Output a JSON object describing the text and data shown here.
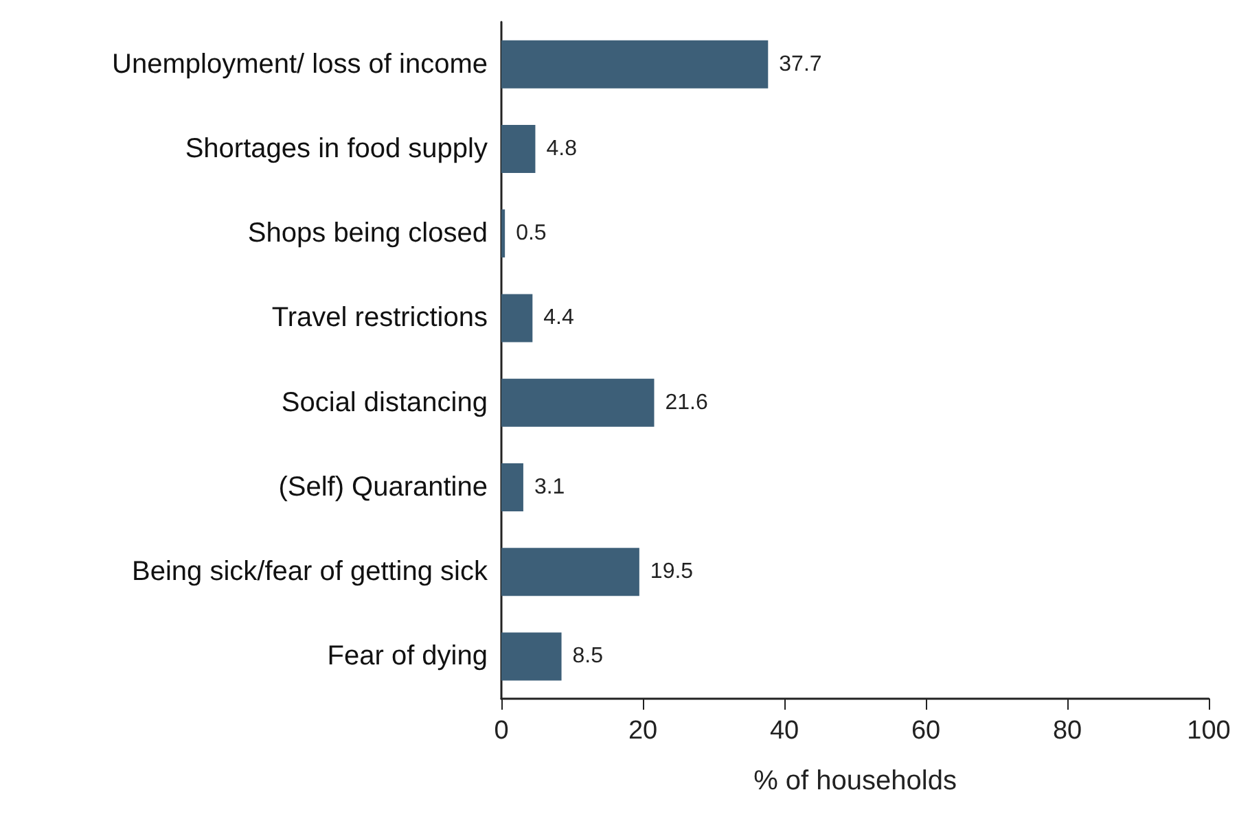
{
  "chart_data": {
    "type": "bar",
    "orientation": "horizontal",
    "xlabel": "% of households",
    "categories": [
      "Unemployment/ loss of income",
      "Shortages in food supply",
      "Shops being closed",
      "Travel restrictions",
      "Social distancing",
      "(Self) Quarantine",
      "Being sick/fear of getting sick",
      "Fear of dying"
    ],
    "values": [
      37.7,
      4.8,
      0.5,
      4.4,
      21.6,
      3.1,
      19.5,
      8.5
    ],
    "color": "#3d5f78",
    "xlim": [
      0,
      100
    ],
    "xticks": [
      0,
      20,
      40,
      60,
      80,
      100
    ],
    "data_labels": true,
    "grid": false
  }
}
